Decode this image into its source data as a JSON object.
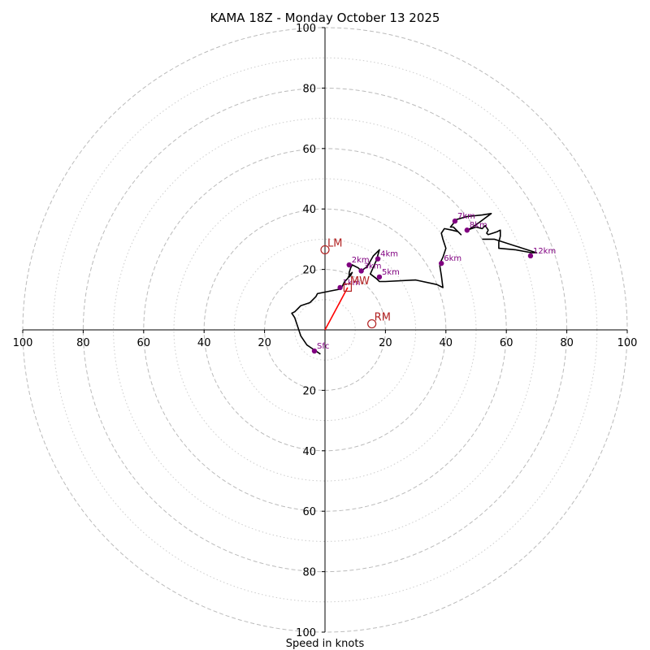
{
  "chart_data": {
    "type": "hodograph",
    "title": "KAMA 18Z - Monday October 13 2025",
    "xlabel": "Speed in knots",
    "range": [
      -100,
      100
    ],
    "ring_major": [
      20,
      40,
      60,
      80,
      100
    ],
    "ring_minor": [
      10,
      30,
      50,
      70,
      90
    ],
    "x_tick_labels": [
      "100",
      "80",
      "60",
      "40",
      "20",
      "20",
      "40",
      "60",
      "80",
      "100"
    ],
    "x_tick_values": [
      -100,
      -80,
      -60,
      -40,
      -20,
      20,
      40,
      60,
      80,
      100
    ],
    "y_tick_labels": [
      "100",
      "80",
      "60",
      "40",
      "20",
      "20",
      "40",
      "60",
      "80",
      "100"
    ],
    "y_tick_values": [
      100,
      80,
      60,
      40,
      20,
      -20,
      -40,
      -60,
      -80,
      -100
    ],
    "trace": [
      [
        -1.5,
        -8
      ],
      [
        -3,
        -7
      ],
      [
        -6,
        -5
      ],
      [
        -8,
        -2
      ],
      [
        -9,
        1
      ],
      [
        -10,
        4
      ],
      [
        -11,
        5.5
      ],
      [
        -10,
        6
      ],
      [
        -9,
        7
      ],
      [
        -8,
        8
      ],
      [
        -6.5,
        8.5
      ],
      [
        -5,
        9
      ],
      [
        -3,
        11
      ],
      [
        -2.5,
        12
      ],
      [
        0,
        12.5
      ],
      [
        2.5,
        13
      ],
      [
        5,
        13.5
      ],
      [
        5.5,
        14
      ],
      [
        6,
        15
      ],
      [
        6.5,
        16
      ],
      [
        7.5,
        17
      ],
      [
        8,
        18
      ],
      [
        9,
        19
      ],
      [
        8.5,
        18
      ],
      [
        8,
        17.5
      ],
      [
        8,
        19
      ],
      [
        8.5,
        20.5
      ],
      [
        9,
        21.5
      ],
      [
        11,
        20.5
      ],
      [
        12,
        19.5
      ],
      [
        14,
        21
      ],
      [
        16,
        24.5
      ],
      [
        18,
        26.5
      ],
      [
        17,
        23
      ],
      [
        15,
        18.5
      ],
      [
        17,
        17
      ],
      [
        18,
        16
      ],
      [
        20,
        16
      ],
      [
        30,
        16.5
      ],
      [
        37,
        15
      ],
      [
        39,
        14
      ],
      [
        38.5,
        18
      ],
      [
        38,
        21
      ],
      [
        38,
        22
      ],
      [
        39,
        24
      ],
      [
        40,
        27
      ],
      [
        39,
        30
      ],
      [
        38.5,
        32
      ],
      [
        39.5,
        33.5
      ],
      [
        42,
        33
      ],
      [
        44,
        32.5
      ],
      [
        45,
        31.5
      ],
      [
        43.5,
        33
      ],
      [
        42.5,
        34
      ],
      [
        41.5,
        34
      ],
      [
        43.5,
        36.5
      ],
      [
        47,
        37.5
      ],
      [
        52,
        38
      ],
      [
        55,
        38.5
      ],
      [
        51,
        35.5
      ],
      [
        48,
        33.5
      ],
      [
        47,
        33
      ],
      [
        50,
        34
      ],
      [
        52,
        33.5
      ],
      [
        53,
        34.5
      ],
      [
        54,
        33
      ],
      [
        53.5,
        32
      ],
      [
        54,
        31.5
      ],
      [
        55.5,
        32
      ],
      [
        57,
        32.5
      ],
      [
        58,
        33
      ],
      [
        58,
        31
      ],
      [
        57.5,
        29
      ],
      [
        57.5,
        27
      ],
      [
        63,
        26.5
      ],
      [
        68.5,
        25.5
      ],
      [
        70,
        25.5
      ],
      [
        56,
        30
      ],
      [
        52,
        30
      ]
    ],
    "markers": [
      {
        "label": "Sfc",
        "u": -3.5,
        "v": -7
      },
      {
        "label": "1km",
        "u": 5,
        "v": 14
      },
      {
        "label": "2km",
        "u": 8,
        "v": 21.5
      },
      {
        "label": "3km",
        "u": 12,
        "v": 19.5
      },
      {
        "label": "4km",
        "u": 17.5,
        "v": 23.5
      },
      {
        "label": "5km",
        "u": 18,
        "v": 17.5
      },
      {
        "label": "6km",
        "u": 38.5,
        "v": 22
      },
      {
        "label": "7km",
        "u": 43,
        "v": 36
      },
      {
        "label": "8km",
        "u": 47,
        "v": 33
      },
      {
        "label": "12km",
        "u": 68,
        "v": 24.5
      }
    ],
    "storm_motion": [
      {
        "label": "LM",
        "u": 0,
        "v": 26.5,
        "shape": "circle"
      },
      {
        "label": "RM",
        "u": 15.5,
        "v": 2,
        "shape": "circle"
      },
      {
        "label": "MW",
        "u": 7.5,
        "v": 14,
        "shape": "square"
      }
    ],
    "mean_wind_vector": {
      "u": 7.5,
      "v": 14
    }
  },
  "colors": {
    "trace": "#000000",
    "marker": "#800080",
    "storm_motion": "#b22222",
    "vector": "#ff0000",
    "ring": "#bbbbbb"
  }
}
